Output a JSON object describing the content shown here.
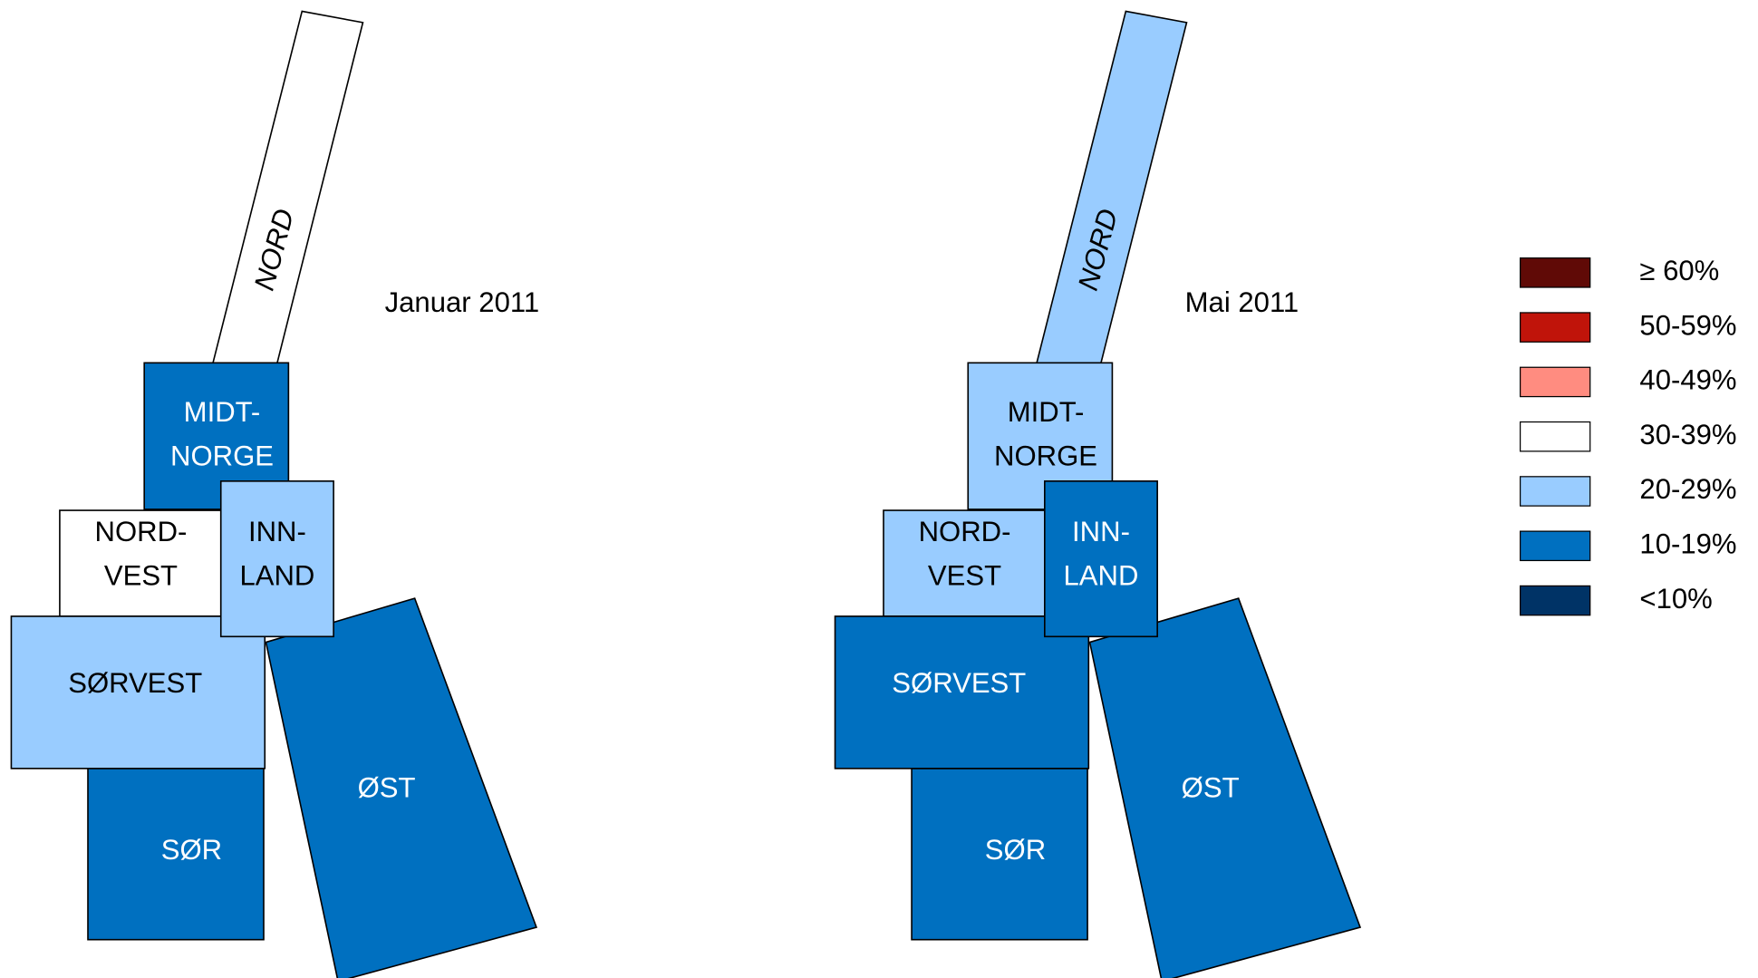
{
  "maps": [
    {
      "title": "Januar 2011",
      "regions": [
        {
          "lines": [
            "NORD"
          ],
          "color": "#ffffff"
        },
        {
          "lines": [
            "ØST"
          ],
          "color": "#0070c0"
        },
        {
          "lines": [
            "SØR"
          ],
          "color": "#0070c0"
        },
        {
          "lines": [
            "MIDT-",
            "NORGE"
          ],
          "color": "#0070c0"
        },
        {
          "lines": [
            "NORD-",
            "VEST"
          ],
          "color": "#ffffff"
        },
        {
          "lines": [
            "SØRVEST"
          ],
          "color": "#99ccff"
        },
        {
          "lines": [
            "INN-",
            "LAND"
          ],
          "color": "#99ccff"
        }
      ]
    },
    {
      "title": "Mai 2011",
      "regions": [
        {
          "lines": [
            "NORD"
          ],
          "color": "#99ccff"
        },
        {
          "lines": [
            "ØST"
          ],
          "color": "#0070c0"
        },
        {
          "lines": [
            "SØR"
          ],
          "color": "#0070c0"
        },
        {
          "lines": [
            "MIDT-",
            "NORGE"
          ],
          "color": "#99ccff"
        },
        {
          "lines": [
            "NORD-",
            "VEST"
          ],
          "color": "#99ccff"
        },
        {
          "lines": [
            "SØRVEST"
          ],
          "color": "#0070c0"
        },
        {
          "lines": [
            "INN-",
            "LAND"
          ],
          "color": "#0070c0"
        }
      ]
    }
  ],
  "legend": [
    {
      "label": "≥ 60%",
      "color": "#600a06"
    },
    {
      "label": "50-59%",
      "color": "#c0140a"
    },
    {
      "label": "40-49%",
      "color": "#ff8c80"
    },
    {
      "label": "30-39%",
      "color": "#ffffff"
    },
    {
      "label": "20-29%",
      "color": "#99ccff"
    },
    {
      "label": "10-19%",
      "color": "#0070c0"
    },
    {
      "label": "<10%",
      "color": "#003366"
    }
  ]
}
